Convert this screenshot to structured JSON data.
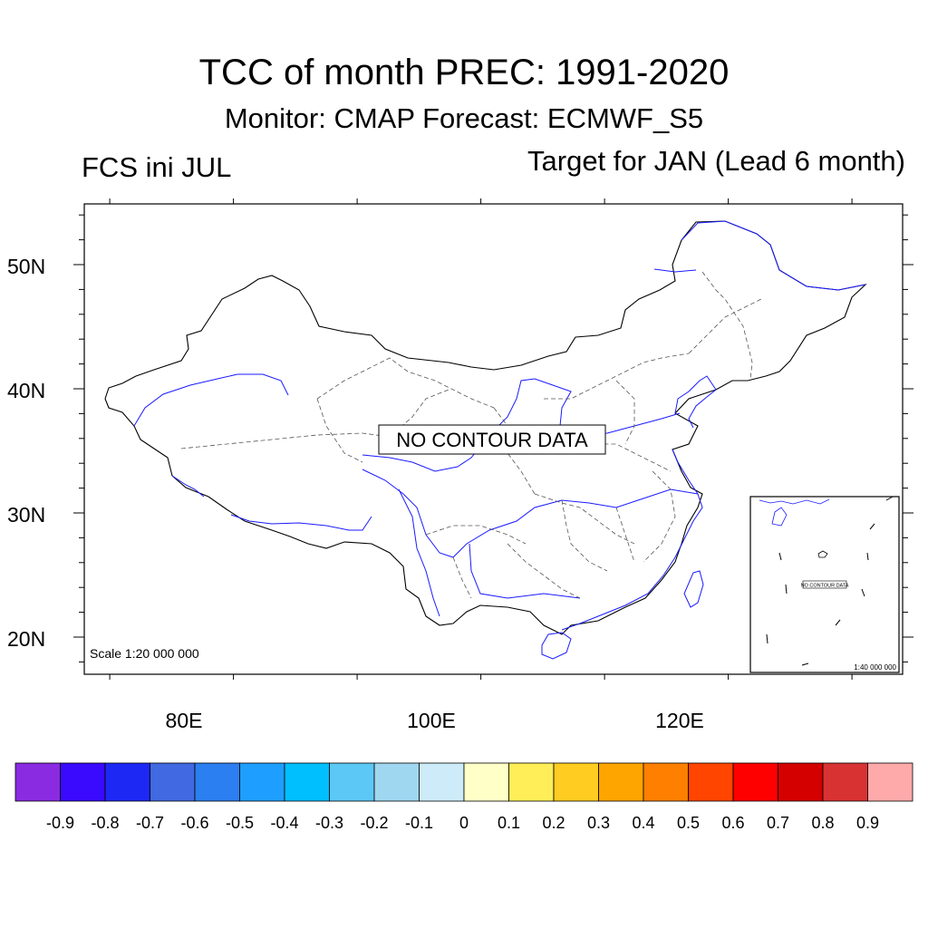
{
  "header": {
    "title": "TCC of month PREC: 1991-2020",
    "subtitle": "Monitor: CMAP   Forecast: ECMWF_S5",
    "left_label": "FCS ini JUL",
    "right_label": "Target for JAN (Lead 6 month)"
  },
  "map": {
    "no_data_message": "NO CONTOUR DATA",
    "scale_label": "Scale 1:20 000 000",
    "lat_ticks": [
      "50N",
      "40N",
      "30N",
      "20N"
    ],
    "lon_ticks": [
      "80E",
      "100E",
      "120E"
    ],
    "boundary_color": "#000000",
    "province_color": "#555555",
    "river_color": "#1a1aff"
  },
  "inset": {
    "no_data_message": "NO CONTOUR DATA",
    "scale_label": "1:40 000 000"
  },
  "colorbar": {
    "labels": [
      "-0.9",
      "-0.8",
      "-0.7",
      "-0.6",
      "-0.5",
      "-0.4",
      "-0.3",
      "-0.2",
      "-0.1",
      "0",
      "0.1",
      "0.2",
      "0.3",
      "0.4",
      "0.5",
      "0.6",
      "0.7",
      "0.8",
      "0.9"
    ],
    "colors": [
      "#8a2be2",
      "#3a0aff",
      "#1e28f5",
      "#4169e1",
      "#2b7ff0",
      "#1e9eff",
      "#00bfff",
      "#5cc8f5",
      "#9fd6f0",
      "#cdebf8",
      "#ffffc8",
      "#ffee58",
      "#ffcc22",
      "#ffa500",
      "#ff8000",
      "#ff4500",
      "#ff0000",
      "#d40000",
      "#d93232",
      "#ffaaaa"
    ]
  }
}
